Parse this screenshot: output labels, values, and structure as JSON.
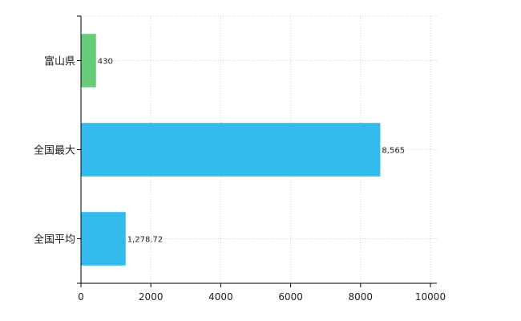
{
  "chart_data": {
    "type": "bar",
    "orientation": "horizontal",
    "categories": [
      "富山県",
      "全国最大",
      "全国平均"
    ],
    "values": [
      430,
      8565,
      1278.72
    ],
    "value_labels": [
      "430",
      "8,565",
      "1,278.72"
    ],
    "colors": [
      "#66cc77",
      "#33bbee",
      "#33bbee"
    ],
    "xlim": [
      0,
      10000
    ],
    "xticks": [
      0,
      2000,
      4000,
      6000,
      8000,
      10000
    ],
    "xtick_labels": [
      "0",
      "2000",
      "4000",
      "6000",
      "8000",
      "10000"
    ],
    "grid": true,
    "title": "",
    "xlabel": "",
    "ylabel": ""
  }
}
